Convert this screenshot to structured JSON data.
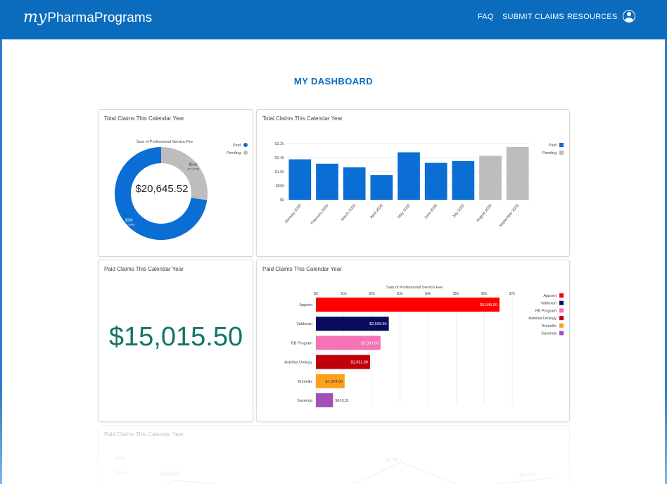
{
  "brand": {
    "prefix": "my",
    "name": "PharmaPrograms"
  },
  "nav": {
    "faq": "FAQ",
    "submit_claims": "SUBMIT CLAIMS",
    "resources": "RESOURCES"
  },
  "page_title": "MY DASHBOARD",
  "colors": {
    "header": "#0b6cbd",
    "paid": "#0b6ed4",
    "pending": "#bdbdbd",
    "big_number": "#137466"
  },
  "cards": {
    "donut": {
      "title": "Total Claims This Calendar Year",
      "subtitle": "Sum of Professional Service Fee",
      "center_value": "$20,645.52"
    },
    "monthly": {
      "title": "Total Claims This Calendar Year"
    },
    "paid_total": {
      "title": "Paid Claims This Calendar Year",
      "value": "$15,015.50"
    },
    "paid_programs": {
      "title": "Paid Claims This Calendar Year",
      "subtitle": "Sum of Professional Service Fee"
    },
    "bottom": {
      "title": "Paid Claims This Calendar Year",
      "tick_labels": [
        "$2.8k",
        "$2.4k"
      ],
      "value_labels": [
        "$2,313.90",
        "$2,766.?",
        "$2,???.?"
      ]
    }
  },
  "chart_data": [
    {
      "type": "pie",
      "title": "Sum of Professional Service Fee",
      "legend": {
        "position": "top-right"
      },
      "series": [
        {
          "name": "Paid",
          "value": 15015.5,
          "label": "$15k",
          "pct": "(72.73%)",
          "color": "#0b6ed4"
        },
        {
          "name": "Pending",
          "value": 5630.02,
          "label": "$5.6k",
          "pct": "(27.27%)",
          "color": "#bdbdbd"
        }
      ]
    },
    {
      "type": "bar",
      "categories": [
        "January 2020",
        "February 2020",
        "March 2020",
        "April 2020",
        "May 2020",
        "June 2020",
        "July 2020",
        "August 2020",
        "September 2020"
      ],
      "values": [
        2300,
        2050,
        1850,
        1400,
        2700,
        2100,
        2200,
        2500,
        3000
      ],
      "status": [
        "Paid",
        "Paid",
        "Paid",
        "Paid",
        "Paid",
        "Paid",
        "Paid",
        "Pending",
        "Pending"
      ],
      "legend": {
        "position": "top-right",
        "items": [
          {
            "name": "Paid",
            "color": "#0b6ed4"
          },
          {
            "name": "Pending",
            "color": "#bdbdbd"
          }
        ]
      },
      "y_ticks": [
        {
          "value": 0,
          "label": "$0"
        },
        {
          "value": 800,
          "label": "$800"
        },
        {
          "value": 1600,
          "label": "$1.6k"
        },
        {
          "value": 2400,
          "label": "$2.4k"
        },
        {
          "value": 3200,
          "label": "$3.2k"
        }
      ],
      "ylim": [
        0,
        3200
      ],
      "grid": true
    },
    {
      "type": "bar",
      "orientation": "horizontal",
      "title": "Sum of Professional Service Fee",
      "categories": [
        "Appoint",
        "Valdoxan",
        "RB Program",
        "Astellas Urology",
        "Brintellix",
        "Saxenda"
      ],
      "values": [
        6546.0,
        2599.5,
        2303.89,
        1931.8,
        1024.0,
        610.31
      ],
      "value_labels": [
        "$6,546.00",
        "$2,599.50",
        "$2,303.89",
        "$1,931.80",
        "$1,024.00",
        "$610.31"
      ],
      "colors": [
        "#ff0000",
        "#0a0a5e",
        "#f472b6",
        "#c2000b",
        "#ff9f1a",
        "#a24fb8"
      ],
      "x_ticks": [
        {
          "value": 0,
          "label": "$0"
        },
        {
          "value": 1000,
          "label": "$1k"
        },
        {
          "value": 2000,
          "label": "$2k"
        },
        {
          "value": 3000,
          "label": "$3k"
        },
        {
          "value": 4000,
          "label": "$4k"
        },
        {
          "value": 5000,
          "label": "$5k"
        },
        {
          "value": 6000,
          "label": "$6k"
        },
        {
          "value": 7000,
          "label": "$7k"
        }
      ],
      "xlim": [
        0,
        7000
      ],
      "legend": {
        "position": "top-right"
      },
      "grid": true
    }
  ]
}
